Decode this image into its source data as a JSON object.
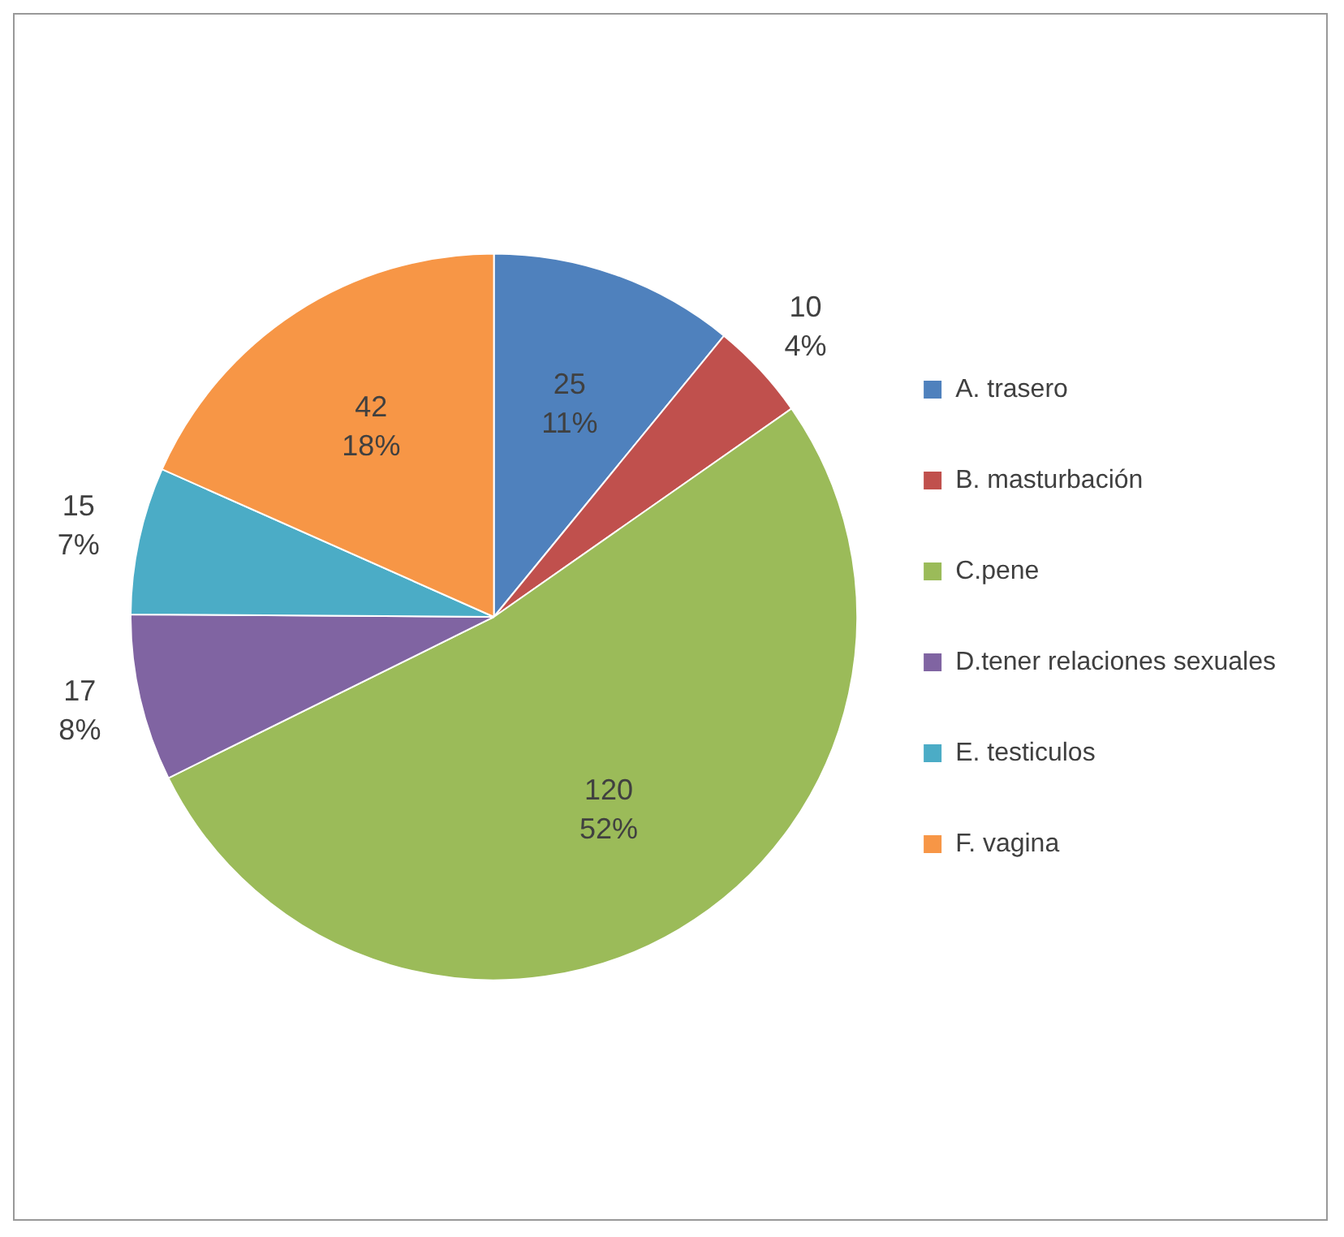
{
  "chart_data": {
    "type": "pie",
    "categories": [
      "A. trasero",
      "B. masturbación",
      "C.pene",
      "D.tener relaciones sexuales",
      "E. testiculos",
      "F. vagina"
    ],
    "values": [
      25,
      10,
      120,
      17,
      15,
      42
    ],
    "colors": [
      "#4f81bd",
      "#c0504d",
      "#9bbb59",
      "#8064a2",
      "#4bacc6",
      "#f79646"
    ],
    "value_labels": [
      "25\n11%",
      "10\n4%",
      "120\n52%",
      "17\n8%",
      "15\n7%",
      "42\n18%"
    ],
    "legend": "right"
  }
}
